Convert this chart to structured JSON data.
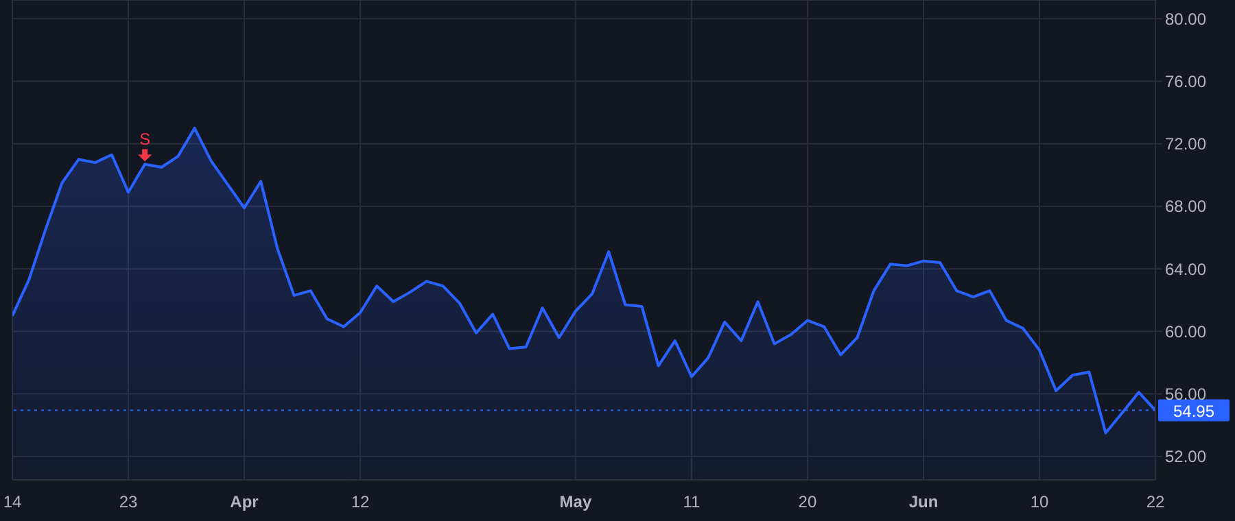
{
  "chart_data": {
    "type": "area",
    "categories": [
      "14",
      null,
      null,
      null,
      null,
      null,
      null,
      "23",
      null,
      null,
      null,
      null,
      null,
      null,
      "Apr",
      null,
      null,
      null,
      null,
      null,
      null,
      "12",
      null,
      null,
      null,
      null,
      null,
      null,
      null,
      null,
      null,
      null,
      null,
      null,
      "May",
      null,
      null,
      null,
      null,
      null,
      null,
      "11",
      null,
      null,
      null,
      null,
      null,
      null,
      "20",
      null,
      null,
      null,
      null,
      null,
      null,
      "Jun",
      null,
      null,
      null,
      null,
      null,
      null,
      "10",
      null,
      null,
      null,
      null,
      null,
      null,
      "22"
    ],
    "series": [
      {
        "color": "#2962ff",
        "values": [
          61.0,
          63.3,
          66.5,
          69.5,
          71.0,
          70.8,
          71.3,
          68.9,
          70.7,
          70.5,
          71.2,
          73.0,
          70.9,
          69.4,
          67.9,
          69.6,
          65.3,
          62.3,
          62.6,
          60.8,
          60.3,
          61.2,
          62.9,
          61.9,
          62.5,
          63.2,
          62.9,
          61.8,
          59.9,
          61.1,
          58.9,
          59.0,
          61.5,
          59.6,
          61.3,
          62.4,
          65.1,
          61.7,
          61.6,
          57.8,
          59.4,
          57.1,
          58.3,
          60.6,
          59.4,
          61.9,
          59.2,
          59.8,
          60.7,
          60.3,
          58.5,
          59.6,
          62.6,
          64.3,
          64.2,
          64.5,
          64.4,
          62.6,
          62.2,
          62.6,
          60.7,
          60.2,
          58.8,
          56.2,
          57.2,
          57.4,
          53.5,
          54.8,
          56.1,
          54.95
        ]
      }
    ],
    "ylim": [
      50.5,
      81.2
    ],
    "yticks": [
      {
        "value": 52,
        "label": "52.00"
      },
      {
        "value": 56,
        "label": "56.00"
      },
      {
        "value": 60,
        "label": "60.00"
      },
      {
        "value": 64,
        "label": "64.00"
      },
      {
        "value": 68,
        "label": "68.00"
      },
      {
        "value": 72,
        "label": "72.00"
      },
      {
        "value": 76,
        "label": "76.00"
      },
      {
        "value": 80,
        "label": "80.00"
      }
    ],
    "grid": true,
    "ref_lines": [
      {
        "axis": "y",
        "value": 54.95,
        "label": "54.95",
        "color": "#2962ff",
        "line_style": "dotted"
      }
    ],
    "annotations": [
      {
        "text": "S",
        "y": 70.7
      }
    ]
  }
}
